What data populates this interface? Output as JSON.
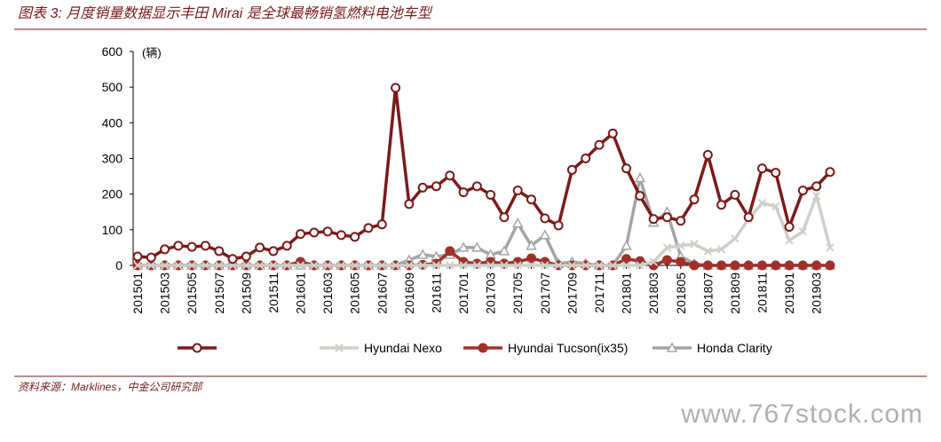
{
  "chart_data": {
    "type": "line",
    "title": "图表 3:  月度销量数据显示丰田 Mirai 是全球最畅销氢燃料电池车型",
    "y_label": "(辆)",
    "source": "资料来源：Marklines，中金公司研究部",
    "watermark": "www.767stock.com",
    "categories": [
      "201501",
      null,
      "201503",
      null,
      "201505",
      null,
      "201507",
      null,
      "201509",
      null,
      "201511",
      null,
      "201601",
      null,
      "201603",
      null,
      "201605",
      null,
      "201607",
      null,
      "201609",
      null,
      "201611",
      null,
      "201701",
      null,
      "201703",
      null,
      "201705",
      null,
      "201707",
      null,
      "201709",
      null,
      "201711",
      null,
      "201801",
      null,
      "201803",
      null,
      "201805",
      null,
      "201807",
      null,
      "201809",
      null,
      "201811",
      null,
      "201901",
      null,
      "201903",
      null
    ],
    "ylim": [
      0,
      600
    ],
    "yticks": [
      0,
      100,
      200,
      300,
      400,
      500,
      600
    ],
    "series": [
      {
        "color": "#7b1a1a",
        "marker": "circle-open",
        "values": [
          25,
          22,
          45,
          55,
          52,
          55,
          40,
          18,
          25,
          50,
          40,
          55,
          88,
          92,
          95,
          85,
          80,
          105,
          115,
          498,
          172,
          218,
          222,
          252,
          205,
          222,
          198,
          135,
          210,
          185,
          132,
          112,
          268,
          300,
          338,
          370,
          272,
          195,
          130,
          135,
          125,
          185,
          310,
          170,
          198,
          135,
          272,
          260,
          108,
          210,
          222,
          262
        ]
      },
      {
        "name": "Hyundai Nexo",
        "color": "#cfcfca",
        "marker": "x",
        "values": [
          0,
          0,
          0,
          0,
          0,
          0,
          0,
          0,
          0,
          0,
          0,
          0,
          0,
          0,
          0,
          0,
          0,
          0,
          0,
          0,
          0,
          0,
          0,
          0,
          0,
          0,
          0,
          0,
          0,
          0,
          0,
          0,
          0,
          0,
          0,
          0,
          0,
          0,
          10,
          50,
          55,
          60,
          40,
          45,
          75,
          130,
          175,
          165,
          70,
          95,
          195,
          50
        ]
      },
      {
        "name": "Hyundai Tucson(ix35)",
        "color": "#a0302a",
        "marker": "circle",
        "values": [
          0,
          0,
          0,
          0,
          0,
          0,
          0,
          0,
          0,
          0,
          0,
          0,
          10,
          0,
          0,
          0,
          0,
          0,
          0,
          0,
          0,
          2,
          5,
          40,
          10,
          5,
          10,
          5,
          10,
          20,
          10,
          0,
          0,
          0,
          0,
          0,
          18,
          12,
          0,
          15,
          10,
          0,
          0,
          0,
          0,
          0,
          0,
          0,
          0,
          0,
          0,
          0
        ]
      },
      {
        "name": "Honda Clarity",
        "color": "#a5a5a5",
        "marker": "triangle-open",
        "values": [
          0,
          0,
          0,
          0,
          0,
          0,
          0,
          0,
          0,
          0,
          0,
          0,
          0,
          0,
          0,
          0,
          0,
          0,
          0,
          0,
          15,
          30,
          25,
          30,
          50,
          50,
          30,
          40,
          118,
          55,
          85,
          5,
          10,
          5,
          0,
          0,
          55,
          245,
          120,
          150,
          25,
          5,
          0,
          0,
          0,
          0,
          0,
          0,
          0,
          0,
          0,
          0
        ]
      }
    ]
  }
}
